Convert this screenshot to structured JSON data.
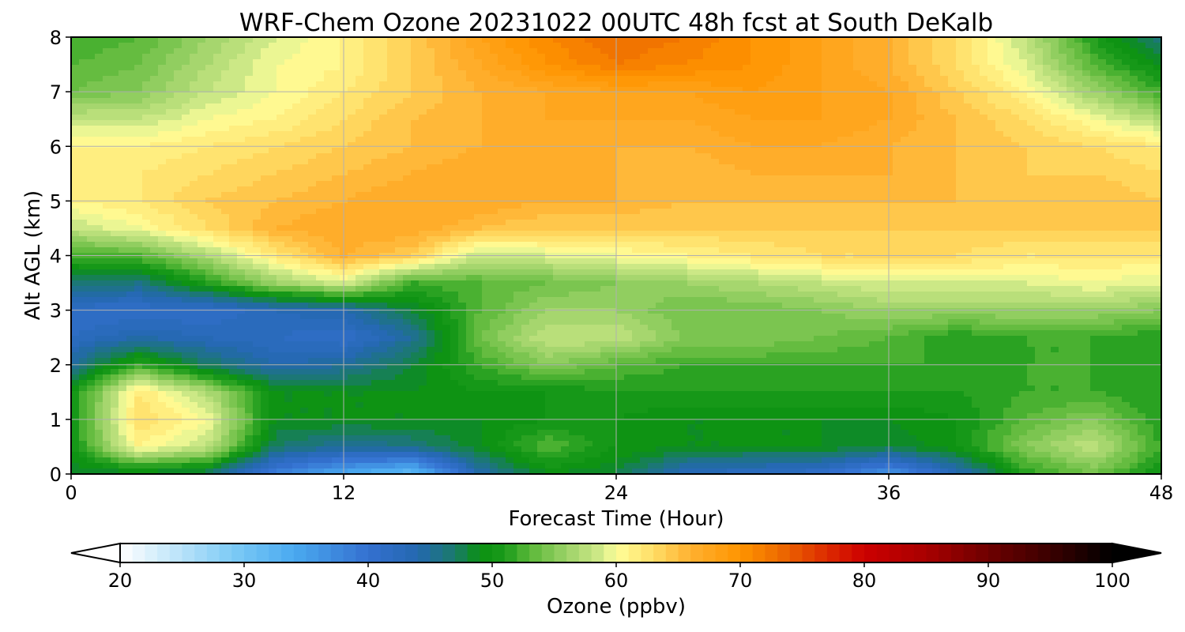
{
  "chart_data": {
    "type": "heatmap",
    "title": "WRF-Chem Ozone  20231022 00UTC 48h fcst at South DeKalb",
    "xlabel": "Forecast Time (Hour)",
    "ylabel": "Alt AGL (km)",
    "xlim": [
      0,
      48
    ],
    "ylim": [
      0,
      8
    ],
    "x_ticks": [
      0,
      12,
      24,
      36,
      48
    ],
    "y_ticks": [
      0,
      1,
      2,
      3,
      4,
      5,
      6,
      7,
      8
    ],
    "grid": true,
    "x": [
      0,
      3,
      6,
      9,
      12,
      15,
      18,
      21,
      24,
      27,
      30,
      33,
      36,
      39,
      42,
      45,
      48
    ],
    "y": [
      0,
      0.5,
      1,
      1.5,
      2,
      2.5,
      3,
      3.5,
      4,
      4.5,
      5,
      5.5,
      6,
      6.5,
      7,
      7.5,
      8
    ],
    "z": [
      [
        48,
        48,
        47,
        38,
        34,
        31,
        44,
        49,
        48,
        43,
        42,
        41,
        36,
        43,
        51,
        54,
        50
      ],
      [
        50,
        61,
        58,
        47,
        45,
        46,
        49,
        53,
        50,
        49,
        49,
        49,
        48,
        50,
        55,
        58,
        52
      ],
      [
        50,
        63,
        60,
        49,
        49,
        49,
        49,
        50,
        50,
        49,
        49,
        49,
        49,
        50,
        53,
        55,
        51
      ],
      [
        50,
        62,
        57,
        49,
        49,
        49,
        50,
        50,
        51,
        51,
        51,
        51,
        51,
        51,
        52,
        52,
        51
      ],
      [
        45,
        52,
        47,
        44,
        45,
        48,
        52,
        55,
        53,
        52,
        52,
        52,
        52,
        52,
        52,
        52,
        51
      ],
      [
        42,
        44,
        43,
        42,
        41,
        45,
        54,
        58,
        58,
        55,
        55,
        54,
        53,
        51,
        52,
        52,
        51
      ],
      [
        41,
        41,
        41,
        43,
        44,
        48,
        53,
        56,
        56,
        54,
        54,
        55,
        56,
        56,
        56,
        56,
        55
      ],
      [
        47,
        46,
        51,
        56,
        59,
        52,
        53,
        54,
        55,
        56,
        57,
        58,
        59,
        59,
        59,
        60,
        59
      ],
      [
        52,
        53,
        57,
        62,
        66,
        64,
        58,
        59,
        60,
        61,
        62,
        63,
        63,
        63,
        62,
        62,
        62
      ],
      [
        58,
        60,
        63,
        66,
        67,
        67,
        65,
        64,
        64,
        64,
        64,
        64,
        64,
        64,
        64,
        64,
        64
      ],
      [
        61,
        62,
        64,
        65,
        66,
        67,
        67,
        66,
        66,
        65,
        65,
        65,
        65,
        65,
        65,
        65,
        64
      ],
      [
        62,
        62,
        63,
        64,
        65,
        66,
        67,
        67,
        66,
        65,
        66,
        66,
        66,
        65,
        64,
        64,
        63
      ],
      [
        61,
        61,
        62,
        63,
        64,
        65,
        66,
        66,
        66,
        66,
        67,
        67,
        66,
        65,
        64,
        63,
        62
      ],
      [
        58,
        58,
        60,
        61,
        63,
        65,
        66,
        67,
        67,
        67,
        68,
        68,
        67,
        65,
        63,
        60,
        57
      ],
      [
        54,
        55,
        58,
        60,
        62,
        64,
        66,
        67,
        68,
        68,
        69,
        68,
        67,
        64,
        61,
        56,
        52
      ],
      [
        53,
        54,
        57,
        60,
        61,
        64,
        67,
        70,
        72,
        71,
        70,
        68,
        66,
        63,
        59,
        53,
        49
      ],
      [
        52,
        53,
        56,
        59,
        61,
        64,
        68,
        71,
        73,
        72,
        70,
        68,
        66,
        63,
        58,
        51,
        46
      ]
    ],
    "colorbar": {
      "label": "Ozone  (ppbv)",
      "min": 20,
      "max": 100,
      "step": 1,
      "extend": "both",
      "ticks": [
        20,
        30,
        40,
        50,
        60,
        70,
        80,
        90,
        100
      ],
      "colormap_stops": [
        {
          "v": 20,
          "c": "#ffffff"
        },
        {
          "v": 29,
          "c": "#7ecbf5"
        },
        {
          "v": 34,
          "c": "#4aaaf0"
        },
        {
          "v": 40,
          "c": "#3470d0"
        },
        {
          "v": 44,
          "c": "#2468b0"
        },
        {
          "v": 47,
          "c": "#1a7a6a"
        },
        {
          "v": 49,
          "c": "#0a9010"
        },
        {
          "v": 51,
          "c": "#1a9a1a"
        },
        {
          "v": 53,
          "c": "#5ab838"
        },
        {
          "v": 56,
          "c": "#9cd268"
        },
        {
          "v": 59,
          "c": "#d6ec8c"
        },
        {
          "v": 60,
          "c": "#ffff99"
        },
        {
          "v": 63,
          "c": "#ffdd66"
        },
        {
          "v": 66,
          "c": "#ffb030"
        },
        {
          "v": 70,
          "c": "#ff9400"
        },
        {
          "v": 73,
          "c": "#ee6e00"
        },
        {
          "v": 77,
          "c": "#dd2a00"
        },
        {
          "v": 80,
          "c": "#cc0000"
        },
        {
          "v": 85,
          "c": "#a80000"
        },
        {
          "v": 90,
          "c": "#6e0000"
        },
        {
          "v": 95,
          "c": "#3a0000"
        },
        {
          "v": 100,
          "c": "#000000"
        }
      ]
    }
  }
}
